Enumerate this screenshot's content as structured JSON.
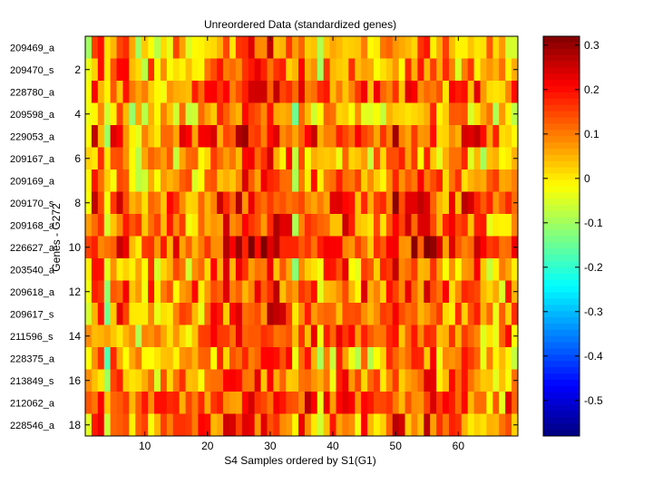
{
  "chart_data": {
    "type": "heatmap",
    "title": "Unreordered Data (standardized genes)",
    "xlabel": "S4 Samples ordered by S1(G1)",
    "ylabel": "Genes - G272",
    "n_samples": 69,
    "xlim": [
      0.5,
      69.5
    ],
    "x_ticks": [
      10,
      20,
      30,
      40,
      50,
      60
    ],
    "y_ticks": [
      2,
      4,
      6,
      8,
      10,
      12,
      14,
      16,
      18
    ],
    "genes": [
      "209469_a",
      "209470_s",
      "228780_a",
      "209598_a",
      "229053_a",
      "209167_a",
      "209169_a",
      "209170_s",
      "209168_a",
      "226627_a",
      "203540_a",
      "209618_a",
      "209617_s",
      "211596_s",
      "228375_a",
      "213849_s",
      "212062_a",
      "228546_a"
    ],
    "colorbar": {
      "min": -0.58,
      "max": 0.32,
      "ticks": [
        0.3,
        0.2,
        0.1,
        0,
        -0.1,
        -0.2,
        -0.3,
        -0.4,
        -0.5
      ],
      "colormap": "jet"
    },
    "column_bias": [
      0.02,
      0.12,
      0.1,
      -0.06,
      0.08,
      0.09,
      0.1,
      0.03,
      0.0,
      0.04,
      0.05,
      0.04,
      0.03,
      0.06,
      0.05,
      0.07,
      0.04,
      0.05,
      0.06,
      0.09,
      0.09,
      0.09,
      0.12,
      0.1,
      0.11,
      0.12,
      0.14,
      0.11,
      0.12,
      0.16,
      0.13,
      0.11,
      0.12,
      -0.03,
      0.09,
      0.1,
      0.08,
      0.02,
      0.06,
      0.05,
      0.09,
      0.1,
      0.06,
      0.03,
      0.08,
      0.02,
      0.07,
      0.06,
      0.08,
      0.12,
      0.1,
      0.08,
      0.12,
      0.12,
      0.14,
      0.1,
      0.07,
      0.06,
      0.08,
      0.04,
      0.08,
      0.07,
      0.09,
      0.03,
      0.03,
      0.05,
      0.02,
      0.06,
      0.04
    ],
    "row_bias": [
      -0.01,
      0.0,
      0.04,
      -0.03,
      0.06,
      -0.02,
      0.01,
      0.07,
      0.05,
      0.09,
      0.02,
      0.04,
      0.02,
      0.03,
      0.0,
      0.01,
      0.06,
      0.03
    ],
    "cells": [],
    "_note": "Each cell value = column_bias[j] + row_bias[i] + a small residual; residuals vary roughly between -0.12 and +0.12."
  }
}
